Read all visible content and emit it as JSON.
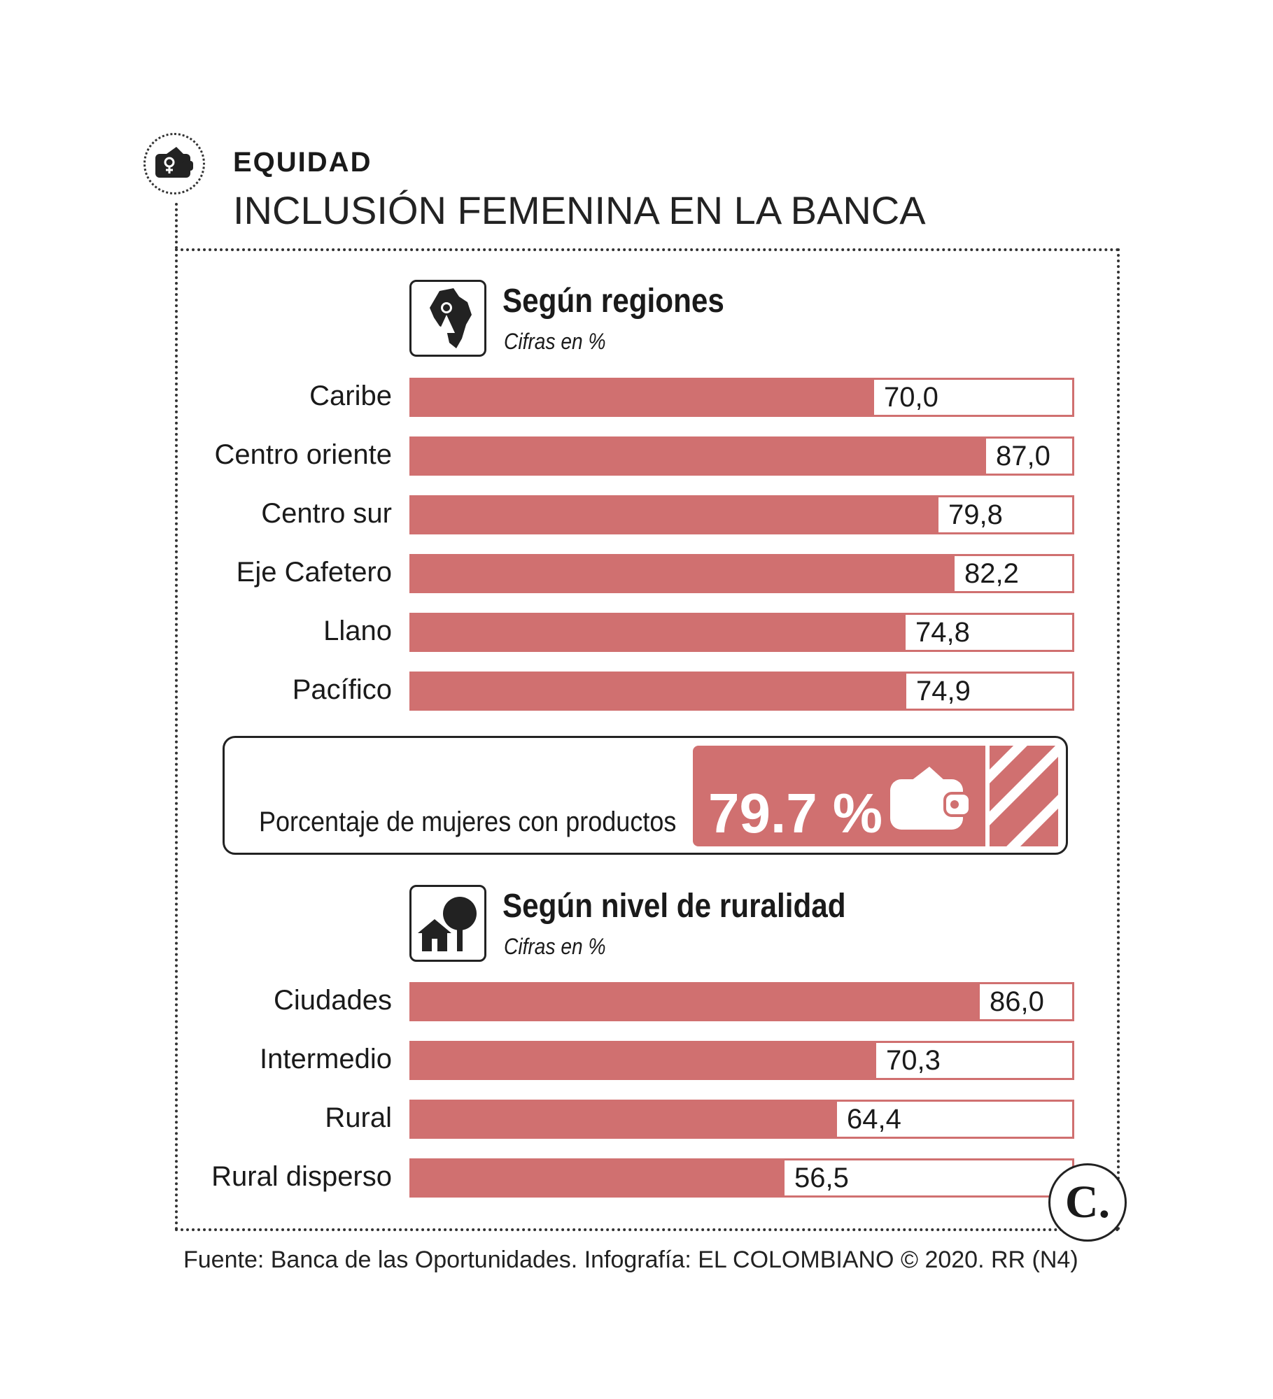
{
  "header": {
    "kicker": "EQUIDAD",
    "headline": "INCLUSIÓN FEMENINA EN LA BANCA",
    "badge_icon": "wallet-female-icon"
  },
  "chart_data": [
    {
      "type": "bar",
      "orientation": "horizontal",
      "title": "Según regiones",
      "subtitle": "Cifras en %",
      "icon": "colombia-map-woman-icon",
      "categories": [
        "Caribe",
        "Centro oriente",
        "Centro sur",
        "Eje Cafetero",
        "Llano",
        "Pacífico"
      ],
      "values": [
        70.0,
        87.0,
        79.8,
        82.2,
        74.8,
        74.9
      ],
      "value_labels": [
        "70,0",
        "87,0",
        "79,8",
        "82,2",
        "74,8",
        "74,9"
      ],
      "xlim": [
        0,
        100
      ],
      "bar_color": "#d07070",
      "grid": false
    },
    {
      "type": "bar",
      "orientation": "horizontal",
      "title": "Según nivel de ruralidad",
      "subtitle": "Cifras en %",
      "icon": "house-tree-icon",
      "categories": [
        "Ciudades",
        "Intermedio",
        "Rural",
        "Rural disperso"
      ],
      "values": [
        86.0,
        70.3,
        64.4,
        56.5
      ],
      "value_labels": [
        "86,0",
        "70,3",
        "64,4",
        "56,5"
      ],
      "xlim": [
        0,
        100
      ],
      "bar_color": "#d07070",
      "grid": false
    }
  ],
  "summary": {
    "label": "Porcentaje de mujeres con productos",
    "value": "79.7 %",
    "icon": "wallet-icon",
    "accent_color": "#d07070"
  },
  "footer": {
    "source": "Fuente: Banca de las Oportunidades. Infografía: EL COLOMBIANO © 2020. RR (N4)",
    "logo_letter": "C."
  }
}
